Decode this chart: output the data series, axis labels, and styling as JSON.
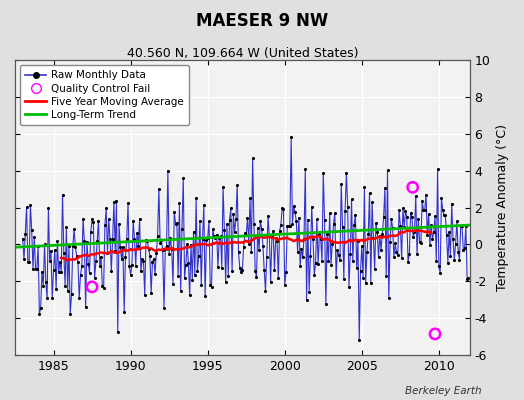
{
  "title": "MAESER 9 NW",
  "subtitle": "40.560 N, 109.664 W (United States)",
  "ylabel": "Temperature Anomaly (°C)",
  "credit": "Berkeley Earth",
  "xlim": [
    1982.5,
    2012.0
  ],
  "ylim": [
    -6,
    10
  ],
  "yticks": [
    -6,
    -4,
    -2,
    0,
    2,
    4,
    6,
    8,
    10
  ],
  "xticks": [
    1985,
    1990,
    1995,
    2000,
    2005,
    2010
  ],
  "fig_bg_color": "#e0e0e0",
  "plot_bg_color": "#f2f2f2",
  "raw_line_color": "#3333cc",
  "raw_dot_color": "#000000",
  "ma_color": "#ff0000",
  "trend_color": "#00bb00",
  "qc_fail_color": "#ff00ff",
  "qc_fail_points": [
    [
      1987.5,
      -2.3
    ],
    [
      2008.3,
      3.1
    ],
    [
      2009.75,
      -4.85
    ]
  ],
  "seed": 42
}
